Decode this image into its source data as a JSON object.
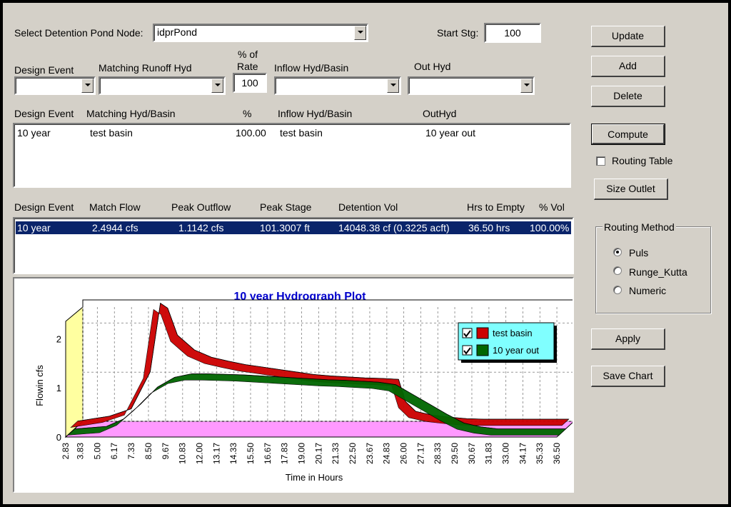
{
  "form": {
    "pond_node_label": "Select Detention Pond Node:",
    "pond_node_value": "idprPond",
    "start_stg_label": "Start Stg:",
    "start_stg_value": "100"
  },
  "editor": {
    "design_event_label": "Design Event",
    "matching_runoff_label": "Matching Runoff Hyd",
    "rate_label_1": "% of",
    "rate_label_2": "Rate",
    "rate_value": "100",
    "inflow_label": "Inflow Hyd/Basin",
    "out_hyd_label": "Out Hyd"
  },
  "events_table": {
    "headers": [
      "Design Event",
      "Matching Hyd/Basin",
      "%",
      "Inflow Hyd/Basin",
      "OutHyd"
    ],
    "rows": [
      [
        "10 year",
        "test basin",
        "100.00",
        "test basin",
        "10 year out"
      ]
    ]
  },
  "results_table": {
    "headers": [
      "Design Event",
      "Match Flow",
      "Peak Outflow",
      "Peak Stage",
      "Detention Vol",
      "Hrs to Empty",
      "% Vol"
    ],
    "rows": [
      [
        "10 year",
        "2.4944 cfs",
        "1.1142 cfs",
        "101.3007 ft",
        "14048.38 cf (0.3225 acft)",
        "36.50 hrs",
        "100.00%"
      ]
    ]
  },
  "buttons": {
    "update": "Update",
    "add": "Add",
    "delete": "Delete",
    "compute": "Compute",
    "size_outlet": "Size Outlet",
    "apply": "Apply",
    "save_chart": "Save Chart"
  },
  "routing_table_label": "Routing Table",
  "routing_method": {
    "title": "Routing Method",
    "options": [
      "Puls",
      "Runge_Kutta",
      "Numeric"
    ],
    "selected": "Puls"
  },
  "colors": {
    "window_bg": "#d4d0c8",
    "selection": "#0a246a",
    "chart_title": "#0000cc",
    "inflow_series": "#cc0000",
    "outflow_series": "#006600",
    "legend_bg": "#80ffff",
    "floor": "#ff99ff",
    "back_wall": "#ffffa0"
  },
  "chart_data": {
    "type": "area",
    "title": "10 year Hydrograph Plot",
    "xlabel": "Time in Hours",
    "ylabel": "Flowin cfs",
    "x_ticks": [
      "2.83",
      "3.83",
      "5.00",
      "6.17",
      "7.33",
      "8.50",
      "9.67",
      "10.83",
      "12.00",
      "13.17",
      "14.33",
      "15.50",
      "16.67",
      "17.83",
      "19.00",
      "20.17",
      "21.33",
      "22.50",
      "23.67",
      "24.83",
      "26.00",
      "27.17",
      "28.33",
      "29.50",
      "30.67",
      "31.83",
      "33.00",
      "34.17",
      "35.33",
      "36.50"
    ],
    "y_ticks": [
      "0",
      "1",
      "2"
    ],
    "ylim": [
      0,
      2.5
    ],
    "xlim": [
      2.83,
      36.5
    ],
    "legend": "top-right",
    "grid": true,
    "series": [
      {
        "name": "test basin",
        "color": "#cc0000",
        "x": [
          2.83,
          5.0,
          6.5,
          7.8,
          8.5,
          9.0,
          9.67,
          10.83,
          12.0,
          13.17,
          14.33,
          15.5,
          16.67,
          17.83,
          19.0,
          20.17,
          21.33,
          22.5,
          23.67,
          24.83,
          25.3,
          26.0,
          27.17,
          28.33,
          29.5,
          30.67,
          31.83,
          33.0,
          34.17,
          35.33,
          36.5
        ],
        "y": [
          0.1,
          0.2,
          0.35,
          1.1,
          2.5,
          2.4,
          1.85,
          1.55,
          1.4,
          1.32,
          1.25,
          1.2,
          1.15,
          1.1,
          1.05,
          1.02,
          1.0,
          0.98,
          0.97,
          0.95,
          0.5,
          0.3,
          0.22,
          0.18,
          0.15,
          0.14,
          0.14,
          0.14,
          0.14,
          0.14,
          0.14
        ]
      },
      {
        "name": "10 year out",
        "color": "#006600",
        "x": [
          2.83,
          5.0,
          6.17,
          7.33,
          8.5,
          9.67,
          10.83,
          12.0,
          13.17,
          14.33,
          15.5,
          16.67,
          17.83,
          19.0,
          20.17,
          21.33,
          22.5,
          23.67,
          24.83,
          26.0,
          27.17,
          28.33,
          29.5,
          30.67,
          31.83,
          33.0,
          34.17,
          35.33,
          36.5
        ],
        "y": [
          0.0,
          0.05,
          0.2,
          0.5,
          0.85,
          1.05,
          1.12,
          1.12,
          1.11,
          1.1,
          1.08,
          1.06,
          1.04,
          1.02,
          1.0,
          0.99,
          0.97,
          0.95,
          0.9,
          0.7,
          0.5,
          0.3,
          0.12,
          0.04,
          0.0,
          0.0,
          0.0,
          0.0,
          0.0
        ]
      }
    ]
  }
}
